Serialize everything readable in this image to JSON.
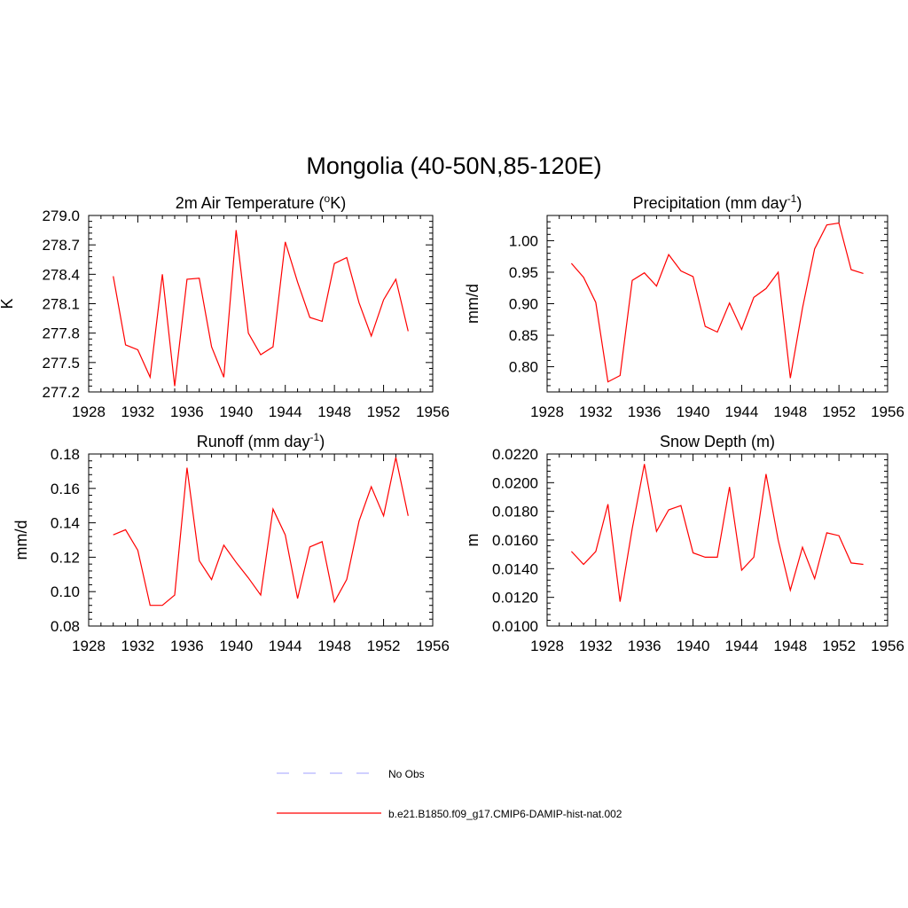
{
  "title": "Mongolia (40-50N,85-120E)",
  "chart_data": [
    {
      "type": "line",
      "title": "2m Air Temperature (",
      "title_sup": "o",
      "title_tail": "K)",
      "ylabel": "K",
      "xlim": [
        1928,
        1956
      ],
      "ylim": [
        277.2,
        279.0
      ],
      "x_ticks": [
        "1928",
        "1932",
        "1936",
        "1940",
        "1944",
        "1948",
        "1952",
        "1956"
      ],
      "y_ticks": [
        "277.2",
        "277.5",
        "277.8",
        "278.1",
        "278.4",
        "278.7",
        "279.0"
      ],
      "series": [
        {
          "x": [
            1930,
            1931,
            1932,
            1933,
            1934,
            1935,
            1936,
            1937,
            1938,
            1939,
            1940,
            1941,
            1942,
            1943,
            1944,
            1945,
            1946,
            1947,
            1948,
            1949,
            1950,
            1951,
            1952,
            1953,
            1954
          ],
          "values": [
            278.38,
            277.68,
            277.63,
            277.35,
            278.4,
            277.26,
            278.35,
            278.36,
            277.66,
            277.35,
            278.85,
            277.8,
            277.58,
            277.66,
            278.73,
            278.32,
            277.96,
            277.92,
            278.51,
            278.57,
            278.11,
            277.77,
            278.14,
            278.35,
            277.82
          ]
        }
      ]
    },
    {
      "type": "line",
      "title": "Precipitation (mm day",
      "title_sup": "-1",
      "title_tail": ")",
      "ylabel": "mm/d",
      "xlim": [
        1928,
        1956
      ],
      "ylim": [
        0.76,
        1.04
      ],
      "x_ticks": [
        "1928",
        "1932",
        "1936",
        "1940",
        "1944",
        "1948",
        "1952",
        "1956"
      ],
      "y_ticks": [
        "0.80",
        "0.85",
        "0.90",
        "0.95",
        "1.00"
      ],
      "series": [
        {
          "x": [
            1930,
            1931,
            1932,
            1933,
            1934,
            1935,
            1936,
            1937,
            1938,
            1939,
            1940,
            1941,
            1942,
            1943,
            1944,
            1945,
            1946,
            1947,
            1948,
            1949,
            1950,
            1951,
            1952,
            1953,
            1954
          ],
          "values": [
            0.964,
            0.942,
            0.902,
            0.776,
            0.786,
            0.937,
            0.949,
            0.928,
            0.978,
            0.952,
            0.943,
            0.864,
            0.855,
            0.901,
            0.859,
            0.91,
            0.924,
            0.95,
            0.782,
            0.893,
            0.987,
            1.025,
            1.028,
            0.954,
            0.948
          ]
        }
      ]
    },
    {
      "type": "line",
      "title": "Runoff (mm day",
      "title_sup": "-1",
      "title_tail": ")",
      "ylabel": "mm/d",
      "xlim": [
        1928,
        1956
      ],
      "ylim": [
        0.08,
        0.18
      ],
      "x_ticks": [
        "1928",
        "1932",
        "1936",
        "1940",
        "1944",
        "1948",
        "1952",
        "1956"
      ],
      "y_ticks": [
        "0.08",
        "0.10",
        "0.12",
        "0.14",
        "0.16",
        "0.18"
      ],
      "series": [
        {
          "x": [
            1930,
            1931,
            1932,
            1933,
            1934,
            1935,
            1936,
            1937,
            1938,
            1939,
            1940,
            1941,
            1942,
            1943,
            1944,
            1945,
            1946,
            1947,
            1948,
            1949,
            1950,
            1951,
            1952,
            1953,
            1954
          ],
          "values": [
            0.133,
            0.136,
            0.124,
            0.092,
            0.092,
            0.098,
            0.172,
            0.118,
            0.107,
            0.127,
            0.117,
            0.108,
            0.098,
            0.148,
            0.133,
            0.096,
            0.126,
            0.129,
            0.094,
            0.107,
            0.141,
            0.161,
            0.144,
            0.178,
            0.144
          ]
        }
      ]
    },
    {
      "type": "line",
      "title": "Snow Depth (m)",
      "title_sup": "",
      "title_tail": "",
      "ylabel": "m",
      "xlim": [
        1928,
        1956
      ],
      "ylim": [
        0.01,
        0.022
      ],
      "x_ticks": [
        "1928",
        "1932",
        "1936",
        "1940",
        "1944",
        "1948",
        "1952",
        "1956"
      ],
      "y_ticks": [
        "0.0100",
        "0.0120",
        "0.0140",
        "0.0160",
        "0.0180",
        "0.0200",
        "0.0220"
      ],
      "series": [
        {
          "x": [
            1930,
            1931,
            1932,
            1933,
            1934,
            1935,
            1936,
            1937,
            1938,
            1939,
            1940,
            1941,
            1942,
            1943,
            1944,
            1945,
            1946,
            1947,
            1948,
            1949,
            1950,
            1951,
            1952,
            1953,
            1954
          ],
          "values": [
            0.0152,
            0.0143,
            0.0152,
            0.0185,
            0.0117,
            0.0168,
            0.0213,
            0.0166,
            0.0181,
            0.0184,
            0.0151,
            0.0148,
            0.0148,
            0.0197,
            0.0139,
            0.0148,
            0.0206,
            0.016,
            0.0125,
            0.0155,
            0.0133,
            0.0165,
            0.0163,
            0.0144,
            0.0143
          ]
        }
      ]
    }
  ],
  "legend": [
    {
      "label": "No Obs",
      "color": "#b3b3ff",
      "style": "dashed"
    },
    {
      "label": "b.e21.B1850.f09_g17.CMIP6-DAMIP-hist-nat.002",
      "color": "#ff0000",
      "style": "solid"
    }
  ],
  "colors": {
    "series": "#ff0000",
    "axis": "#000000"
  }
}
